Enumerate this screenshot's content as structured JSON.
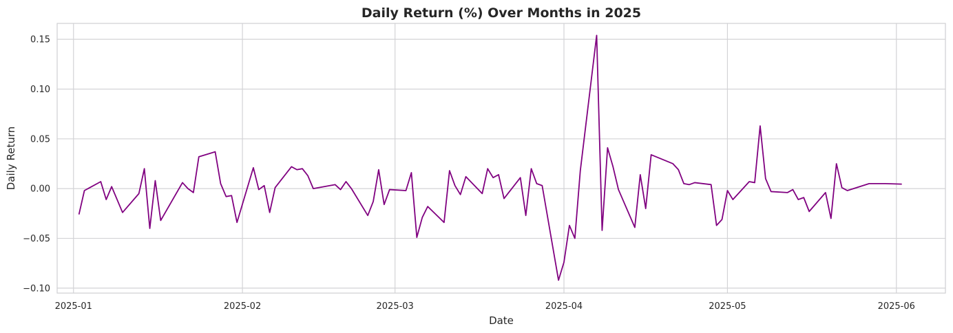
{
  "chart_data": {
    "type": "line",
    "title": "Daily Return (%) Over Months in 2025",
    "xlabel": "Date",
    "ylabel": "Daily Return",
    "xlim": [
      "2024-12-29",
      "2025-06-10"
    ],
    "ylim": [
      -0.105,
      0.166
    ],
    "yticks": [
      -0.1,
      -0.05,
      0.0,
      0.05,
      0.1,
      0.15
    ],
    "ytick_labels": [
      "−0.10",
      "−0.05",
      "0.00",
      "0.05",
      "0.10",
      "0.15"
    ],
    "xticks": [
      "2025-01-01",
      "2025-02-01",
      "2025-03-01",
      "2025-04-01",
      "2025-05-01",
      "2025-06-01"
    ],
    "xtick_labels": [
      "2025-01",
      "2025-02",
      "2025-03",
      "2025-04",
      "2025-05",
      "2025-06"
    ],
    "grid": true,
    "line_color": "#800080",
    "series": [
      {
        "x": [
          "2025-01-02",
          "2025-01-03",
          "2025-01-06",
          "2025-01-07",
          "2025-01-08",
          "2025-01-10",
          "2025-01-13",
          "2025-01-14",
          "2025-01-15",
          "2025-01-16",
          "2025-01-17",
          "2025-01-21",
          "2025-01-22",
          "2025-01-23",
          "2025-01-24",
          "2025-01-27",
          "2025-01-28",
          "2025-01-29",
          "2025-01-30",
          "2025-01-31",
          "2025-02-03",
          "2025-02-04",
          "2025-02-05",
          "2025-02-06",
          "2025-02-07",
          "2025-02-10",
          "2025-02-11",
          "2025-02-12",
          "2025-02-13",
          "2025-02-14",
          "2025-02-18",
          "2025-02-19",
          "2025-02-20",
          "2025-02-21",
          "2025-02-24",
          "2025-02-25",
          "2025-02-26",
          "2025-02-27",
          "2025-02-28",
          "2025-03-03",
          "2025-03-04",
          "2025-03-05",
          "2025-03-06",
          "2025-03-07",
          "2025-03-10",
          "2025-03-11",
          "2025-03-12",
          "2025-03-13",
          "2025-03-14",
          "2025-03-17",
          "2025-03-18",
          "2025-03-19",
          "2025-03-20",
          "2025-03-21",
          "2025-03-24",
          "2025-03-25",
          "2025-03-26",
          "2025-03-27",
          "2025-03-28",
          "2025-03-31",
          "2025-04-01",
          "2025-04-02",
          "2025-04-03",
          "2025-04-04",
          "2025-04-07",
          "2025-04-08",
          "2025-04-09",
          "2025-04-10",
          "2025-04-11",
          "2025-04-14",
          "2025-04-15",
          "2025-04-16",
          "2025-04-17",
          "2025-04-21",
          "2025-04-22",
          "2025-04-23",
          "2025-04-24",
          "2025-04-25",
          "2025-04-28",
          "2025-04-29",
          "2025-04-30",
          "2025-05-01",
          "2025-05-02",
          "2025-05-05",
          "2025-05-06",
          "2025-05-07",
          "2025-05-08",
          "2025-05-09",
          "2025-05-12",
          "2025-05-13",
          "2025-05-14",
          "2025-05-15",
          "2025-05-16",
          "2025-05-19",
          "2025-05-20",
          "2025-05-21",
          "2025-05-22",
          "2025-05-23",
          "2025-05-27",
          "2025-05-28",
          "2025-05-29",
          "2025-05-30",
          "2025-06-02"
        ],
        "y": [
          -0.026,
          -0.002,
          0.007,
          -0.011,
          0.002,
          -0.024,
          -0.005,
          0.02,
          -0.04,
          0.008,
          -0.032,
          0.006,
          0.0,
          -0.004,
          0.032,
          0.037,
          0.005,
          -0.008,
          -0.007,
          -0.034,
          0.021,
          -0.001,
          0.003,
          -0.024,
          0.001,
          0.022,
          0.019,
          0.02,
          0.013,
          0.0,
          0.004,
          -0.001,
          0.007,
          0.0,
          -0.027,
          -0.013,
          0.019,
          -0.016,
          -0.001,
          -0.002,
          0.016,
          -0.049,
          -0.029,
          -0.018,
          -0.034,
          0.018,
          0.003,
          -0.006,
          0.012,
          -0.005,
          0.02,
          0.011,
          0.014,
          -0.01,
          0.011,
          -0.027,
          0.02,
          0.005,
          0.003,
          -0.092,
          -0.074,
          -0.037,
          -0.05,
          0.018,
          0.154,
          -0.042,
          0.041,
          0.022,
          -0.001,
          -0.039,
          0.014,
          -0.02,
          0.034,
          0.025,
          0.019,
          0.005,
          0.004,
          0.006,
          0.004,
          -0.037,
          -0.031,
          -0.002,
          -0.011,
          0.007,
          0.006,
          0.063,
          0.01,
          -0.003,
          -0.004,
          -0.001,
          -0.011,
          -0.009,
          -0.023,
          -0.004,
          -0.03,
          0.025,
          0.001,
          -0.002,
          0.005,
          0.005,
          0.005,
          0.005,
          0.0045
        ]
      }
    ]
  }
}
